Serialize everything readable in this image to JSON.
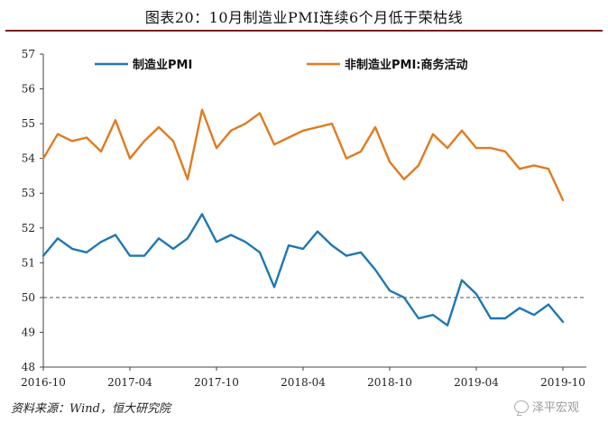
{
  "header": {
    "title": "图表20：10月制造业PMI连续6个月低于荣枯线"
  },
  "source_note": "资料来源：Wind，恒大研究院",
  "watermark": "泽平宏观",
  "chart_data": {
    "type": "line",
    "title": "图表20：10月制造业PMI连续6个月低于荣枯线",
    "ylim": [
      48,
      57
    ],
    "yticks": [
      48,
      49,
      50,
      51,
      52,
      53,
      54,
      55,
      56,
      57
    ],
    "x_tick_labels": [
      "2016-10",
      "2017-04",
      "2017-10",
      "2018-04",
      "2018-10",
      "2019-04",
      "2019-10"
    ],
    "x_tick_index": [
      0,
      6,
      12,
      18,
      24,
      30,
      36
    ],
    "reference_line": {
      "value": 50,
      "style": "dashed",
      "color": "#555555"
    },
    "legend_position": "top",
    "x": [
      "2016-10",
      "2016-11",
      "2016-12",
      "2017-01",
      "2017-02",
      "2017-03",
      "2017-04",
      "2017-05",
      "2017-06",
      "2017-07",
      "2017-08",
      "2017-09",
      "2017-10",
      "2017-11",
      "2017-12",
      "2018-01",
      "2018-02",
      "2018-03",
      "2018-04",
      "2018-05",
      "2018-06",
      "2018-07",
      "2018-08",
      "2018-09",
      "2018-10",
      "2018-11",
      "2018-12",
      "2019-01",
      "2019-02",
      "2019-03",
      "2019-04",
      "2019-05",
      "2019-06",
      "2019-07",
      "2019-08",
      "2019-09",
      "2019-10"
    ],
    "series": [
      {
        "name": "制造业PMI",
        "color": "#1f77b4",
        "values": [
          51.2,
          51.7,
          51.4,
          51.3,
          51.6,
          51.8,
          51.2,
          51.2,
          51.7,
          51.4,
          51.7,
          52.4,
          51.6,
          51.8,
          51.6,
          51.3,
          50.3,
          51.5,
          51.4,
          51.9,
          51.5,
          51.2,
          51.3,
          50.8,
          50.2,
          50.0,
          49.4,
          49.5,
          49.2,
          50.5,
          50.1,
          49.4,
          49.4,
          49.7,
          49.5,
          49.8,
          49.3
        ]
      },
      {
        "name": "非制造业PMI:商务活动",
        "color": "#e07b20",
        "values": [
          54.0,
          54.7,
          54.5,
          54.6,
          54.2,
          55.1,
          54.0,
          54.5,
          54.9,
          54.5,
          53.4,
          55.4,
          54.3,
          54.8,
          55.0,
          55.3,
          54.4,
          54.6,
          54.8,
          54.9,
          55.0,
          54.0,
          54.2,
          54.9,
          53.9,
          53.4,
          53.8,
          54.7,
          54.3,
          54.8,
          54.3,
          54.3,
          54.2,
          53.7,
          53.8,
          53.7,
          52.8
        ]
      }
    ]
  }
}
